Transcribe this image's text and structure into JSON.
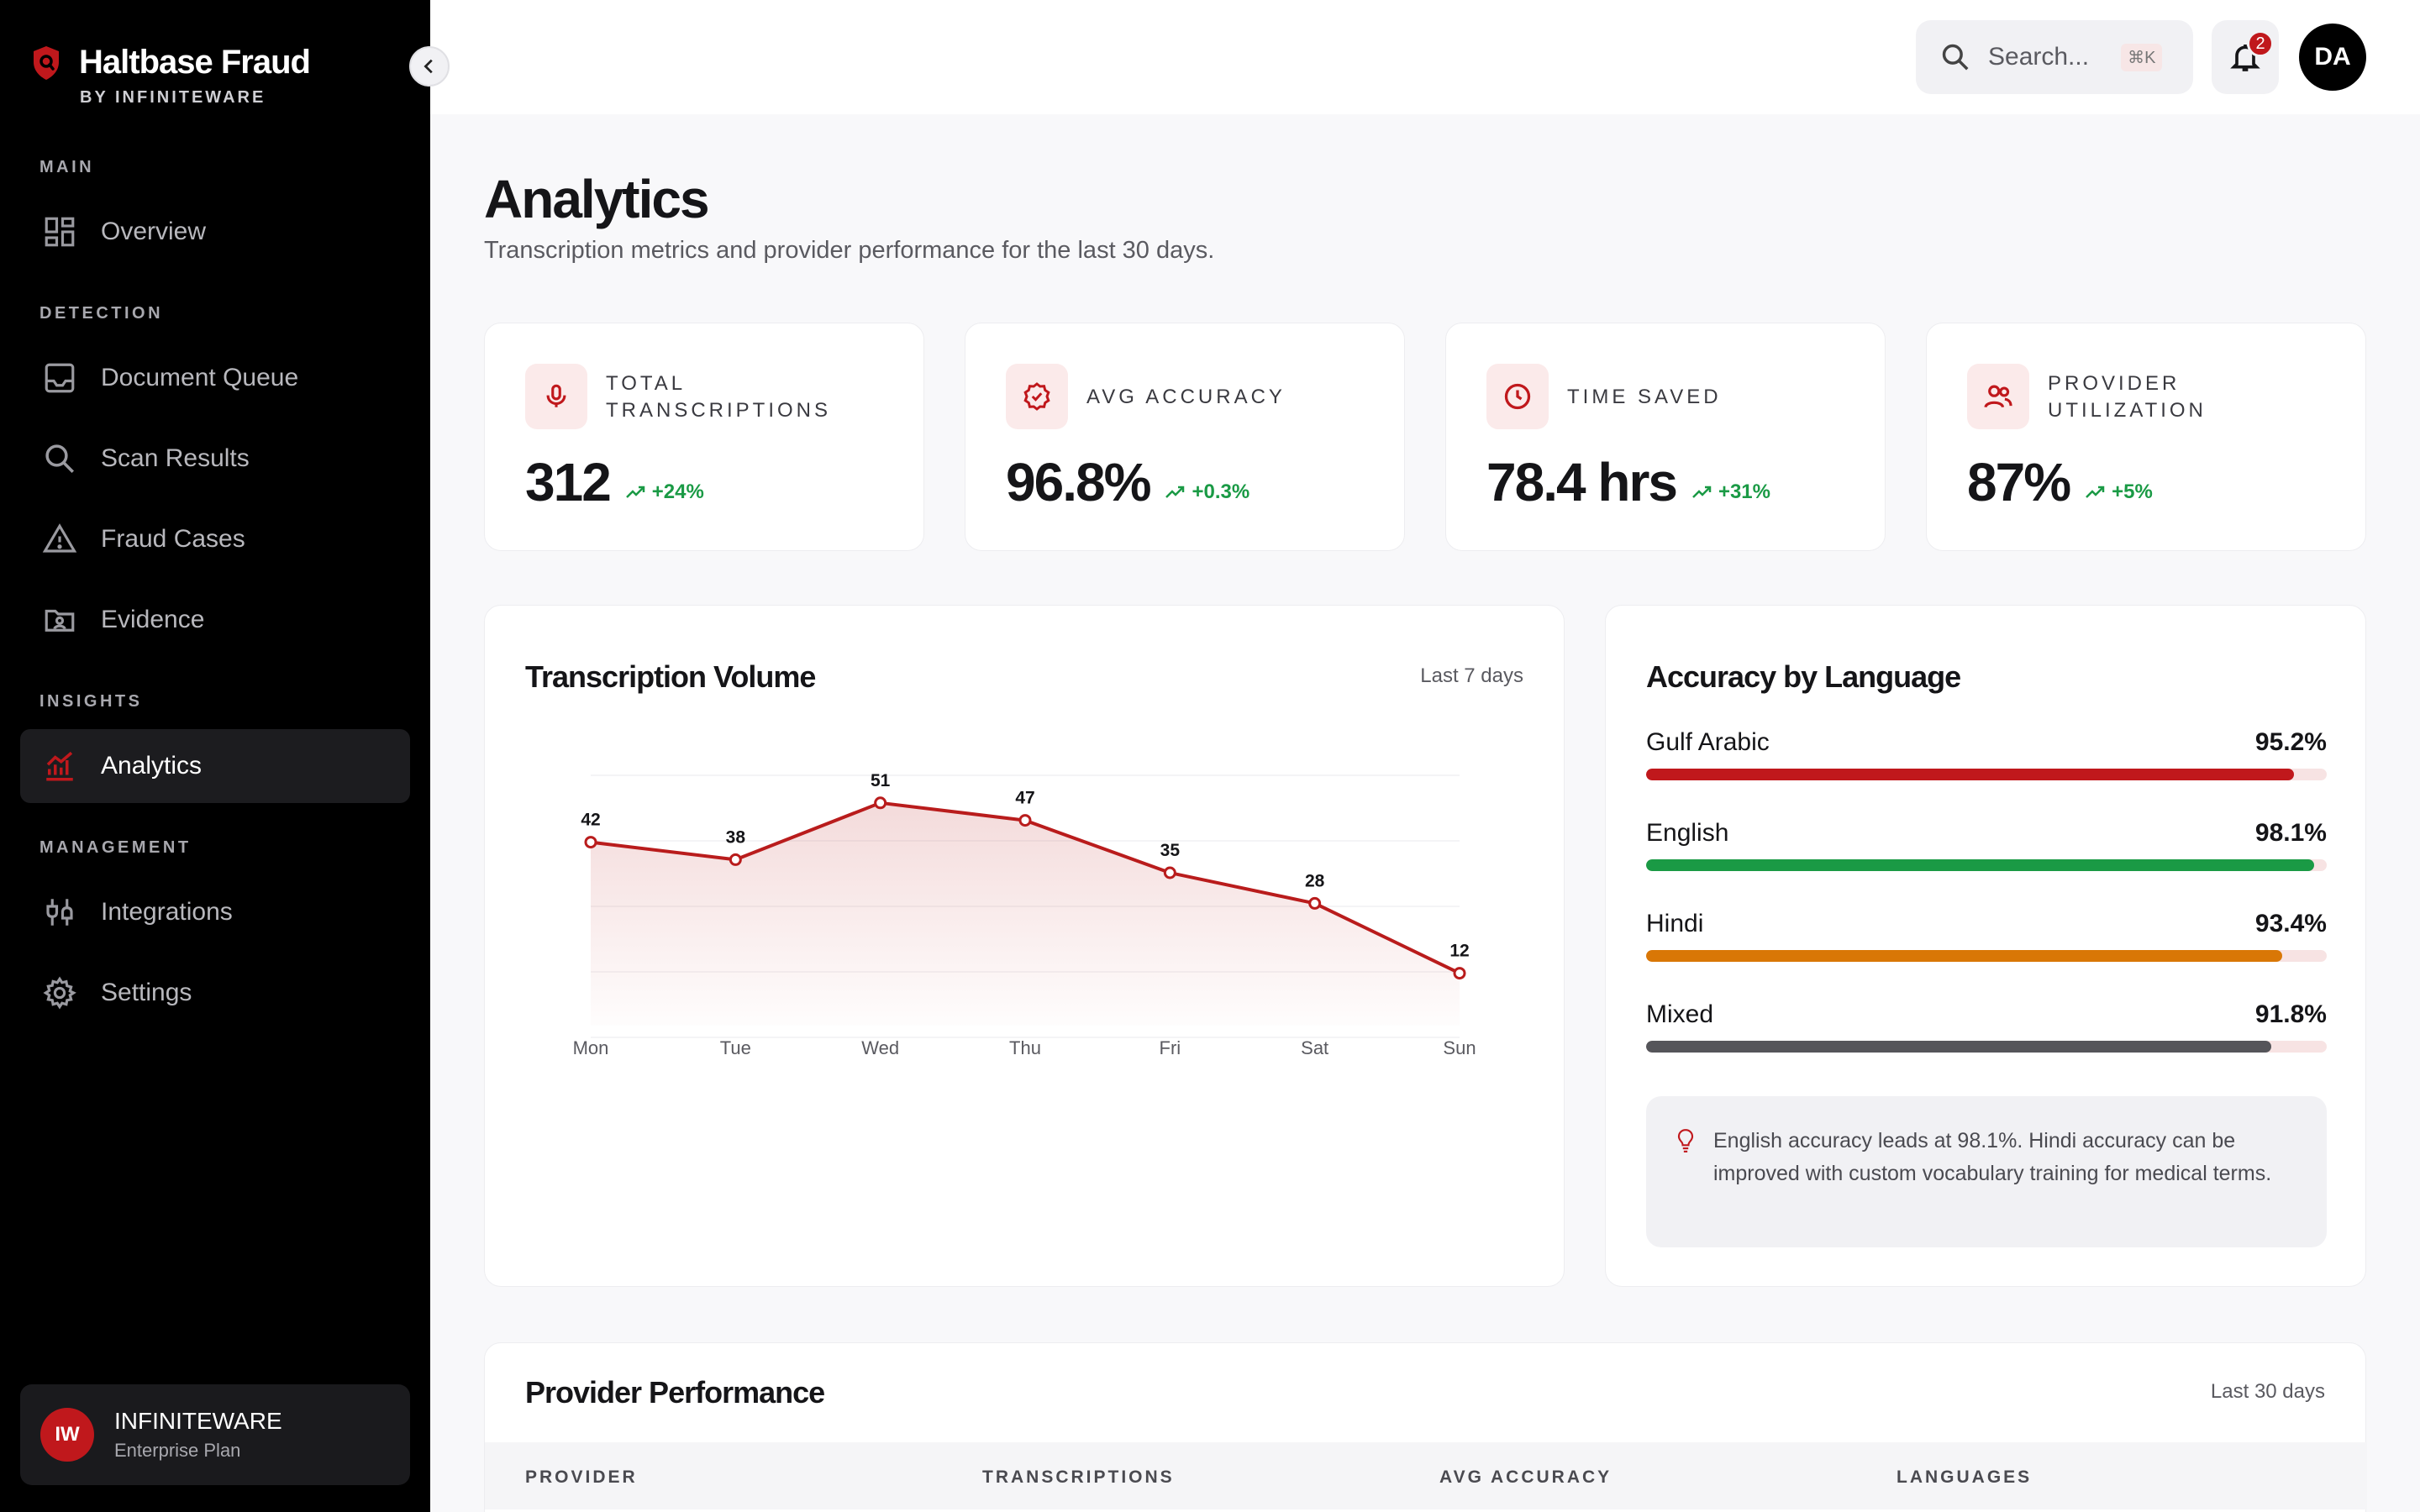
{
  "sidebar": {
    "brand_title": "Haltbase Fraud",
    "brand_sub": "BY INFINITEWARE",
    "sections": {
      "main": "MAIN",
      "detection": "DETECTION",
      "insights": "INSIGHTS",
      "management": "MANAGEMENT"
    },
    "items": {
      "overview": "Overview",
      "document_queue": "Document Queue",
      "scan_results": "Scan Results",
      "fraud_cases": "Fraud Cases",
      "evidence": "Evidence",
      "analytics": "Analytics",
      "integrations": "Integrations",
      "settings": "Settings"
    },
    "org": {
      "initials": "IW",
      "name": "INFINITEWARE",
      "plan": "Enterprise Plan"
    }
  },
  "topbar": {
    "search_placeholder": "Search...",
    "shortcut": "⌘K",
    "notification_count": "2",
    "user_initials": "DA"
  },
  "header": {
    "title": "Analytics",
    "subtitle": "Transcription metrics and provider performance for the last 30 days."
  },
  "kpis": [
    {
      "label": "TOTAL TRANSCRIPTIONS",
      "value": "312",
      "delta": "+24%"
    },
    {
      "label": "AVG ACCURACY",
      "value": "96.8%",
      "delta": "+0.3%"
    },
    {
      "label": "TIME SAVED",
      "value": "78.4 hrs",
      "delta": "+31%"
    },
    {
      "label": "PROVIDER UTILIZATION",
      "value": "87%",
      "delta": "+5%"
    }
  ],
  "volume": {
    "title": "Transcription Volume",
    "range": "Last 7 days"
  },
  "chart_data": {
    "type": "area",
    "x": [
      "Mon",
      "Tue",
      "Wed",
      "Thu",
      "Fri",
      "Sat",
      "Sun"
    ],
    "values": [
      42,
      38,
      51,
      47,
      35,
      28,
      12
    ],
    "ylim": [
      0,
      60
    ],
    "color": "#b91c1c",
    "grid": true
  },
  "languages": {
    "title": "Accuracy by Language",
    "items": [
      {
        "name": "Gulf Arabic",
        "value": "95.2%",
        "pct": 95.2,
        "color": "#c0181c"
      },
      {
        "name": "English",
        "value": "98.1%",
        "pct": 98.1,
        "color": "#1a9a45"
      },
      {
        "name": "Hindi",
        "value": "93.4%",
        "pct": 93.4,
        "color": "#d97706"
      },
      {
        "name": "Mixed",
        "value": "91.8%",
        "pct": 91.8,
        "color": "#55555a"
      }
    ],
    "insight": "English accuracy leads at 98.1%. Hindi accuracy can be improved with custom vocabulary training for medical terms."
  },
  "providers": {
    "title": "Provider Performance",
    "range": "Last 30 days",
    "columns": [
      "PROVIDER",
      "TRANSCRIPTIONS",
      "AVG ACCURACY",
      "LANGUAGES"
    ]
  }
}
